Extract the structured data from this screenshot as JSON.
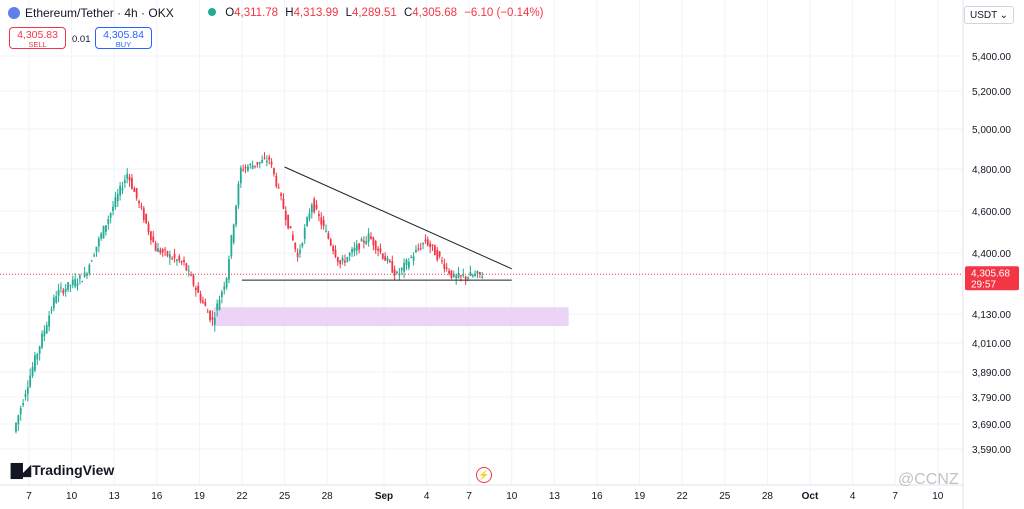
{
  "header": {
    "symbol_title": "Ethereum/Tether · 4h · OKX",
    "open_label": "O",
    "open": "4,311.78",
    "high_label": "H",
    "high": "4,313.99",
    "low_label": "L",
    "low": "4,289.51",
    "close_label": "C",
    "close": "4,305.68",
    "change": "−6.10 (−0.14%)"
  },
  "trade": {
    "sell_price": "4,305.83",
    "sell_label": "SELL",
    "spread": "0.01",
    "buy_price": "4,305.84",
    "buy_label": "BUY"
  },
  "currency": {
    "label": "USDT",
    "chevron": "⌄"
  },
  "last_price": {
    "value": "4,305.68",
    "countdown": "29:57"
  },
  "branding": {
    "name": "TradingView",
    "watermark": "@CCNZ"
  },
  "colors": {
    "up": "#22ab94",
    "down": "#f23645",
    "zone": "#e7cdf3",
    "trendline": "#222222"
  },
  "chart_data": {
    "type": "candlestick",
    "title": "Ethereum/Tether · 4h · OKX",
    "y_ticks": [
      3590,
      3690,
      3790,
      3890,
      4010,
      4130,
      4400,
      4600,
      4800,
      5000,
      5200,
      5400
    ],
    "y_tick_labels": [
      "3,590.00",
      "3,690.00",
      "3,790.00",
      "3,890.00",
      "4,010.00",
      "4,130.00",
      "4,400.00",
      "4,600.00",
      "4,800.00",
      "5,000.00",
      "5,200.00",
      "5,400.00"
    ],
    "x_tick_labels": [
      "7",
      "10",
      "13",
      "16",
      "19",
      "22",
      "25",
      "28",
      "Sep",
      "4",
      "7",
      "10",
      "13",
      "16",
      "19",
      "22",
      "25",
      "28",
      "Oct",
      "4",
      "7",
      "10"
    ],
    "x_tick_dates": [
      "Aug 7",
      "Aug 10",
      "Aug 13",
      "Aug 16",
      "Aug 19",
      "Aug 22",
      "Aug 25",
      "Aug 28",
      "Sep 1",
      "Sep 4",
      "Sep 7",
      "Sep 10",
      "Sep 13",
      "Sep 16",
      "Sep 19",
      "Sep 22",
      "Sep 25",
      "Sep 28",
      "Oct 1",
      "Oct 4",
      "Oct 7",
      "Oct 10"
    ],
    "key_points": [
      {
        "date": "Aug 6",
        "price": 3660
      },
      {
        "date": "Aug 9",
        "price": 4220
      },
      {
        "date": "Aug 11",
        "price": 4300
      },
      {
        "date": "Aug 14",
        "price": 4780
      },
      {
        "date": "Aug 16",
        "price": 4420
      },
      {
        "date": "Aug 18",
        "price": 4350
      },
      {
        "date": "Aug 19",
        "price": 4220
      },
      {
        "date": "Aug 20",
        "price": 4100
      },
      {
        "date": "Aug 21",
        "price": 4300
      },
      {
        "date": "Aug 22",
        "price": 4800
      },
      {
        "date": "Aug 24",
        "price": 4850
      },
      {
        "date": "Aug 26",
        "price": 4380
      },
      {
        "date": "Aug 27",
        "price": 4640
      },
      {
        "date": "Aug 29",
        "price": 4350
      },
      {
        "date": "Aug 31",
        "price": 4480
      },
      {
        "date": "Sep 2",
        "price": 4300
      },
      {
        "date": "Sep 4",
        "price": 4460
      },
      {
        "date": "Sep 6",
        "price": 4290
      },
      {
        "date": "Sep 8",
        "price": 4305
      }
    ],
    "last_price": 4305.68,
    "annotations": {
      "descending_trendline": [
        {
          "date": "Aug 25",
          "price": 4810
        },
        {
          "date": "Sep 10",
          "price": 4330
        }
      ],
      "horizontal_support": {
        "from": "Aug 22",
        "to": "Sep 10",
        "price": 4280
      },
      "demand_zone": {
        "from": "Aug 20",
        "to": "Sep 14",
        "price_low": 4080,
        "price_high": 4160
      }
    }
  }
}
